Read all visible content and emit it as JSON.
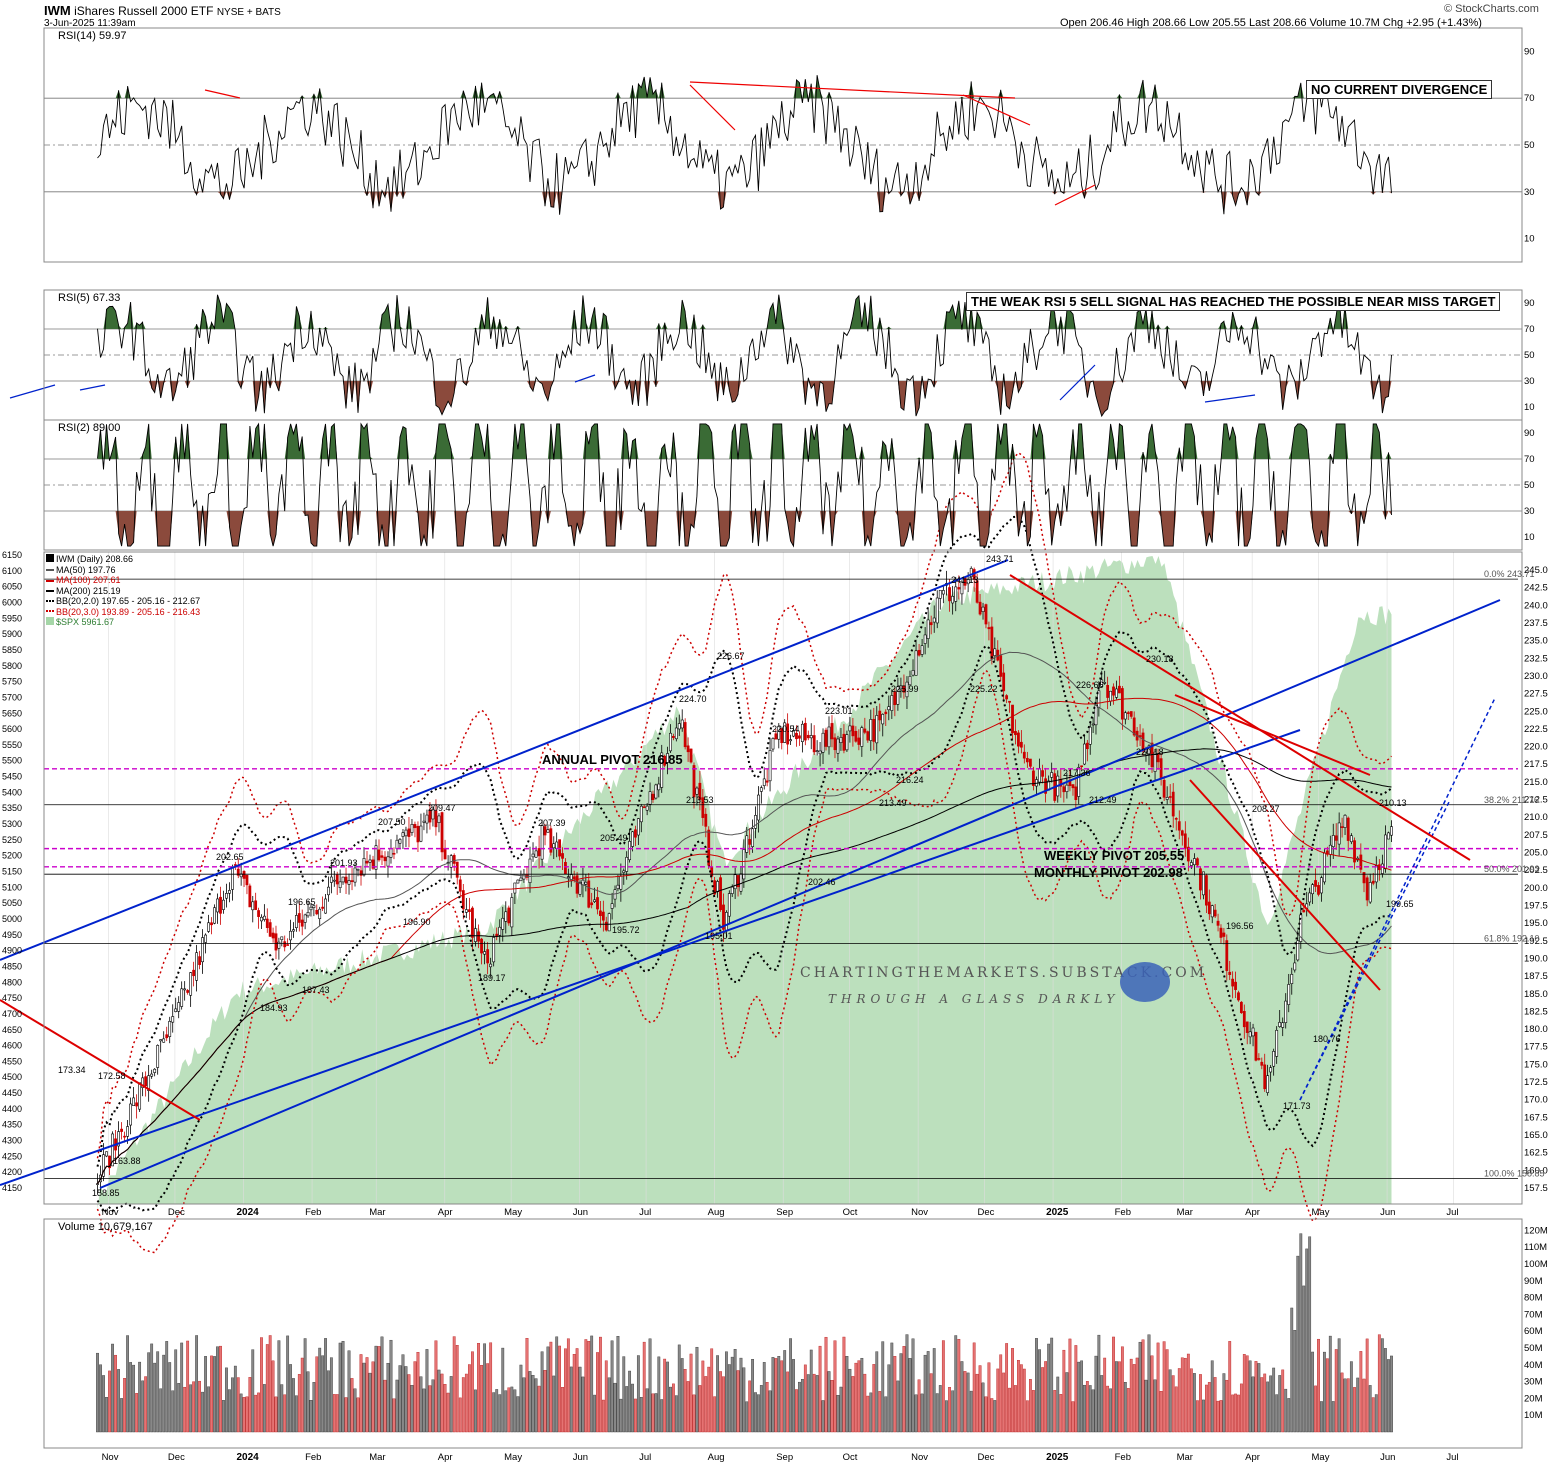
{
  "header": {
    "symbol": "IWM",
    "name": "iShares Russell 2000 ETF",
    "exchange": "NYSE + BATS",
    "datetime": "3-Jun-2025 11:39am",
    "ohlc": "Open 206.46   High 208.66   Low 205.55   Last 208.66   Volume 10.7M   Chg +2.95 (+1.43%)",
    "brand": "© StockCharts.com"
  },
  "panels": {
    "rsi14_label": "RSI(14) 59.97",
    "rsi5_label": "RSI(5) 67.33",
    "rsi2_label": "RSI(2) 89.00",
    "volume_label": "Volume 10,679,167"
  },
  "legend": [
    {
      "text": "IWM (Daily) 208.66",
      "color": "#000000"
    },
    {
      "text": "MA(50) 197.76",
      "color": "#555555"
    },
    {
      "text": "MA(100) 207.61",
      "color": "#cc0000"
    },
    {
      "text": "MA(200) 215.19",
      "color": "#000000"
    },
    {
      "text": "BB(20,2.0) 197.65 - 205.16 - 212.67",
      "color": "#000000"
    },
    {
      "text": "BB(20,3.0) 193.89 - 205.16 - 216.43",
      "color": "#cc0000"
    },
    {
      "text": "$SPX 5961.67",
      "color": "#4caf50"
    }
  ],
  "notes": {
    "rsi14_note": "NO CURRENT DIVERGENCE",
    "rsi5_note": "THE WEAK RSI 5 SELL SIGNAL HAS REACHED THE POSSIBLE NEAR MISS TARGET",
    "annual_pivot": "ANNUAL PIVOT 216.85",
    "weekly_pivot": "WEEKLY PIVOT 205.55",
    "monthly_pivot": "MONTHLY PIVOT 202.98",
    "watermark1": "CHARTINGTHEMARKETS.SUBSTACK.COM",
    "watermark2": "THROUGH A GLASS DARKLY"
  },
  "colors": {
    "up": "#000000",
    "down": "#cc0000",
    "spx_fill": "#a5d6a7",
    "channel": "#0022cc",
    "trend_red": "#dd0000",
    "pivot_magenta": "#cc00cc",
    "overbought": "#3a6b35",
    "oversold": "#8b4a3c"
  },
  "chart_data": {
    "type": "line",
    "title": "IWM iShares Russell 2000 ETF",
    "x_ticks": [
      "Nov",
      "Dec",
      "2024",
      "Feb",
      "Mar",
      "Apr",
      "May",
      "Jun",
      "Jul",
      "Aug",
      "Sep",
      "Oct",
      "Nov",
      "Dec",
      "2025",
      "Feb",
      "Mar",
      "Apr",
      "May",
      "Jun",
      "Jul"
    ],
    "price_axis": [
      157.5,
      160.0,
      162.5,
      165.0,
      167.5,
      170.0,
      172.5,
      175.0,
      177.5,
      180.0,
      182.5,
      185.0,
      187.5,
      190.0,
      192.5,
      195.0,
      197.5,
      200.0,
      202.5,
      205.0,
      207.5,
      210.0,
      212.5,
      215.0,
      217.5,
      220.0,
      222.5,
      225.0,
      227.5,
      230.0,
      232.5,
      235.0,
      237.5,
      240.0,
      242.5,
      245.0
    ],
    "spx_axis": [
      4150,
      4200,
      4250,
      4300,
      4350,
      4400,
      4450,
      4500,
      4550,
      4600,
      4650,
      4700,
      4750,
      4800,
      4850,
      4900,
      4950,
      5000,
      5050,
      5100,
      5150,
      5200,
      5250,
      5300,
      5350,
      5400,
      5450,
      5500,
      5550,
      5600,
      5650,
      5700,
      5750,
      5800,
      5850,
      5900,
      5950,
      6000,
      6050,
      6100,
      6150
    ],
    "rsi_axis": [
      10,
      30,
      50,
      70,
      90
    ],
    "volume_axis": [
      "10M",
      "20M",
      "30M",
      "40M",
      "50M",
      "60M",
      "70M",
      "80M",
      "90M",
      "100M",
      "110M",
      "120M"
    ],
    "price_labels": [
      "158.85",
      "163.88",
      "173.34",
      "172.58",
      "184.93",
      "187.43",
      "189.17",
      "195.72",
      "195.01",
      "196.90",
      "196.65",
      "201.93",
      "202.65",
      "202.46",
      "205.49",
      "207.39",
      "207.50",
      "209.47",
      "213.49",
      "213.53",
      "216.24",
      "217.36",
      "212.49",
      "220.18",
      "220.54",
      "223.01",
      "224.70",
      "225.22",
      "225.99",
      "226.66",
      "226.67",
      "230.18",
      "241.13",
      "243.71",
      "208.27",
      "210.13",
      "196.56",
      "199.65",
      "180.76",
      "171.73"
    ],
    "fib_labels": [
      "0.0% 243.71",
      "38.2% 211.76",
      "50.0% 201.93",
      "61.8% 192.10",
      "100.0% 158.85"
    ],
    "series": [
      {
        "name": "IWM (Daily)",
        "x": [
          "2023-10-27",
          "2023-11-30",
          "2023-12-27",
          "2024-01-17",
          "2024-02-15",
          "2024-03-28",
          "2024-04-19",
          "2024-05-15",
          "2024-06-13",
          "2024-07-16",
          "2024-08-05",
          "2024-08-30",
          "2024-09-19",
          "2024-10-16",
          "2024-11-11",
          "2024-11-25",
          "2024-12-19",
          "2025-01-10",
          "2025-01-23",
          "2025-02-12",
          "2025-03-10",
          "2025-04-08",
          "2025-04-23",
          "2025-05-13",
          "2025-05-23",
          "2025-06-03"
        ],
        "y": [
          158.85,
          180.5,
          202.65,
          191.5,
          201.93,
          209.47,
          189.17,
          207.39,
          195.72,
          224.7,
          195.01,
          222.0,
          220.54,
          223.01,
          241.13,
          243.71,
          217.36,
          212.49,
          230.18,
          220.5,
          200.5,
          171.73,
          195.0,
          210.13,
          199.65,
          208.66
        ]
      },
      {
        "name": "$SPX",
        "x": [
          "2023-10-27",
          "2023-12-29",
          "2024-04-19",
          "2024-07-16",
          "2024-08-05",
          "2024-11-11",
          "2025-02-19",
          "2025-04-08",
          "2025-05-19",
          "2025-06-03"
        ],
        "y": [
          4117,
          4770,
          4967,
          5667,
          5186,
          6001,
          6144,
          4982,
          5963,
          5962
        ]
      }
    ],
    "volume": {
      "unit": "M",
      "peak": 120
    }
  }
}
